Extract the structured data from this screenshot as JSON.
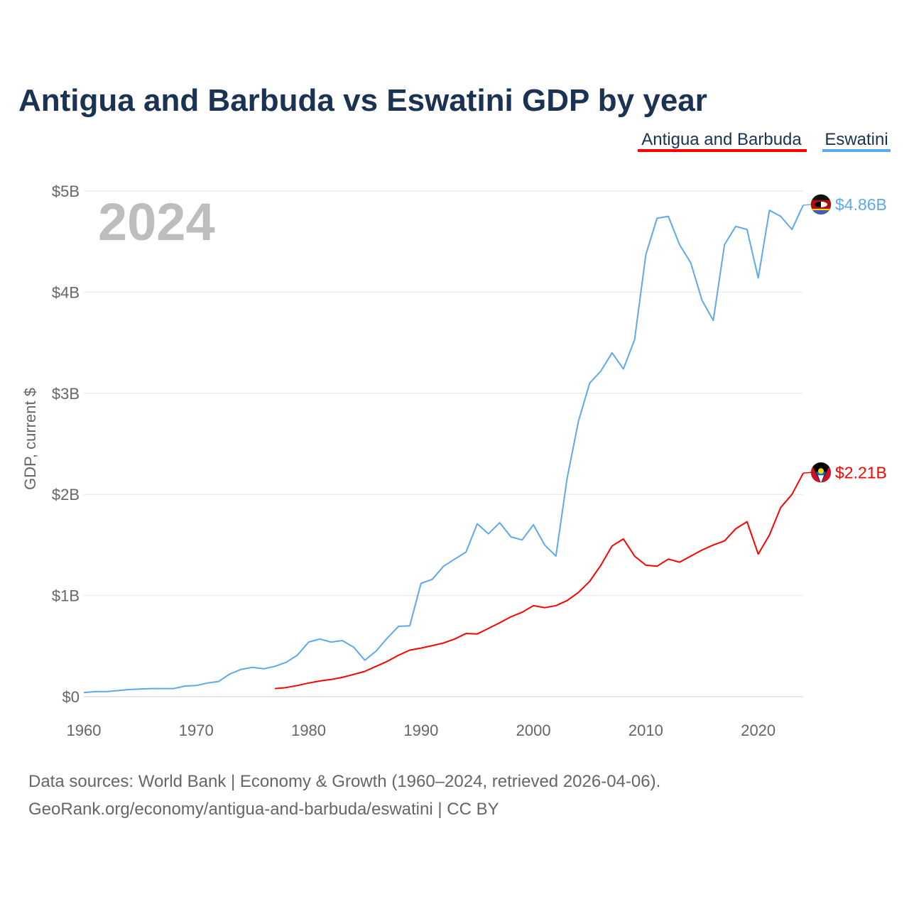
{
  "chart_data": {
    "type": "line",
    "title": "Antigua and Barbuda vs Eswatini GDP by year",
    "ylabel": "GDP, current $",
    "xlabel": "",
    "xlim": [
      1960,
      2024
    ],
    "ylim": [
      0,
      5
    ],
    "y_unit": "billion USD",
    "x_ticks": [
      "1960",
      "1970",
      "1980",
      "1990",
      "2000",
      "2010",
      "2020"
    ],
    "y_ticks": [
      "$0",
      "$1B",
      "$2B",
      "$3B",
      "$4B",
      "$5B"
    ],
    "grid": true,
    "legend_position": "top-right",
    "year_watermark": "2024",
    "series": [
      {
        "name": "Antigua and Barbuda",
        "color": "#ff0000",
        "end_label": "$2.21B",
        "flag_icon": "antigua-and-barbuda-flag",
        "start_year": 1977,
        "values": [
          0.08,
          0.09,
          0.11,
          0.135,
          0.155,
          0.17,
          0.19,
          0.22,
          0.25,
          0.3,
          0.35,
          0.41,
          0.46,
          0.48,
          0.505,
          0.53,
          0.57,
          0.625,
          0.62,
          0.675,
          0.73,
          0.79,
          0.835,
          0.9,
          0.88,
          0.9,
          0.95,
          1.03,
          1.14,
          1.3,
          1.49,
          1.56,
          1.39,
          1.3,
          1.29,
          1.36,
          1.33,
          1.39,
          1.45,
          1.5,
          1.54,
          1.66,
          1.73,
          1.41,
          1.6,
          1.87,
          2.0,
          2.21
        ]
      },
      {
        "name": "Eswatini",
        "color": "#5ea8ec",
        "end_label": "$4.86B",
        "flag_icon": "eswatini-flag",
        "start_year": 1960,
        "values": [
          0.04,
          0.05,
          0.05,
          0.06,
          0.07,
          0.075,
          0.08,
          0.08,
          0.08,
          0.105,
          0.11,
          0.135,
          0.15,
          0.225,
          0.27,
          0.29,
          0.275,
          0.3,
          0.34,
          0.41,
          0.54,
          0.57,
          0.54,
          0.555,
          0.49,
          0.36,
          0.45,
          0.58,
          0.695,
          0.7,
          1.12,
          1.16,
          1.29,
          1.36,
          1.43,
          1.71,
          1.61,
          1.72,
          1.58,
          1.55,
          1.7,
          1.5,
          1.39,
          2.16,
          2.72,
          3.1,
          3.22,
          3.4,
          3.24,
          3.53,
          4.37,
          4.73,
          4.75,
          4.47,
          4.29,
          3.92,
          3.72,
          4.47,
          4.65,
          4.62,
          4.14,
          4.81,
          4.75,
          4.62,
          4.86
        ]
      }
    ]
  },
  "footer": {
    "line1": "Data sources: World Bank | Economy & Growth (1960–2024, retrieved 2026-04-06).",
    "line2": "GeoRank.org/economy/antigua-and-barbuda/eswatini | CC BY"
  }
}
